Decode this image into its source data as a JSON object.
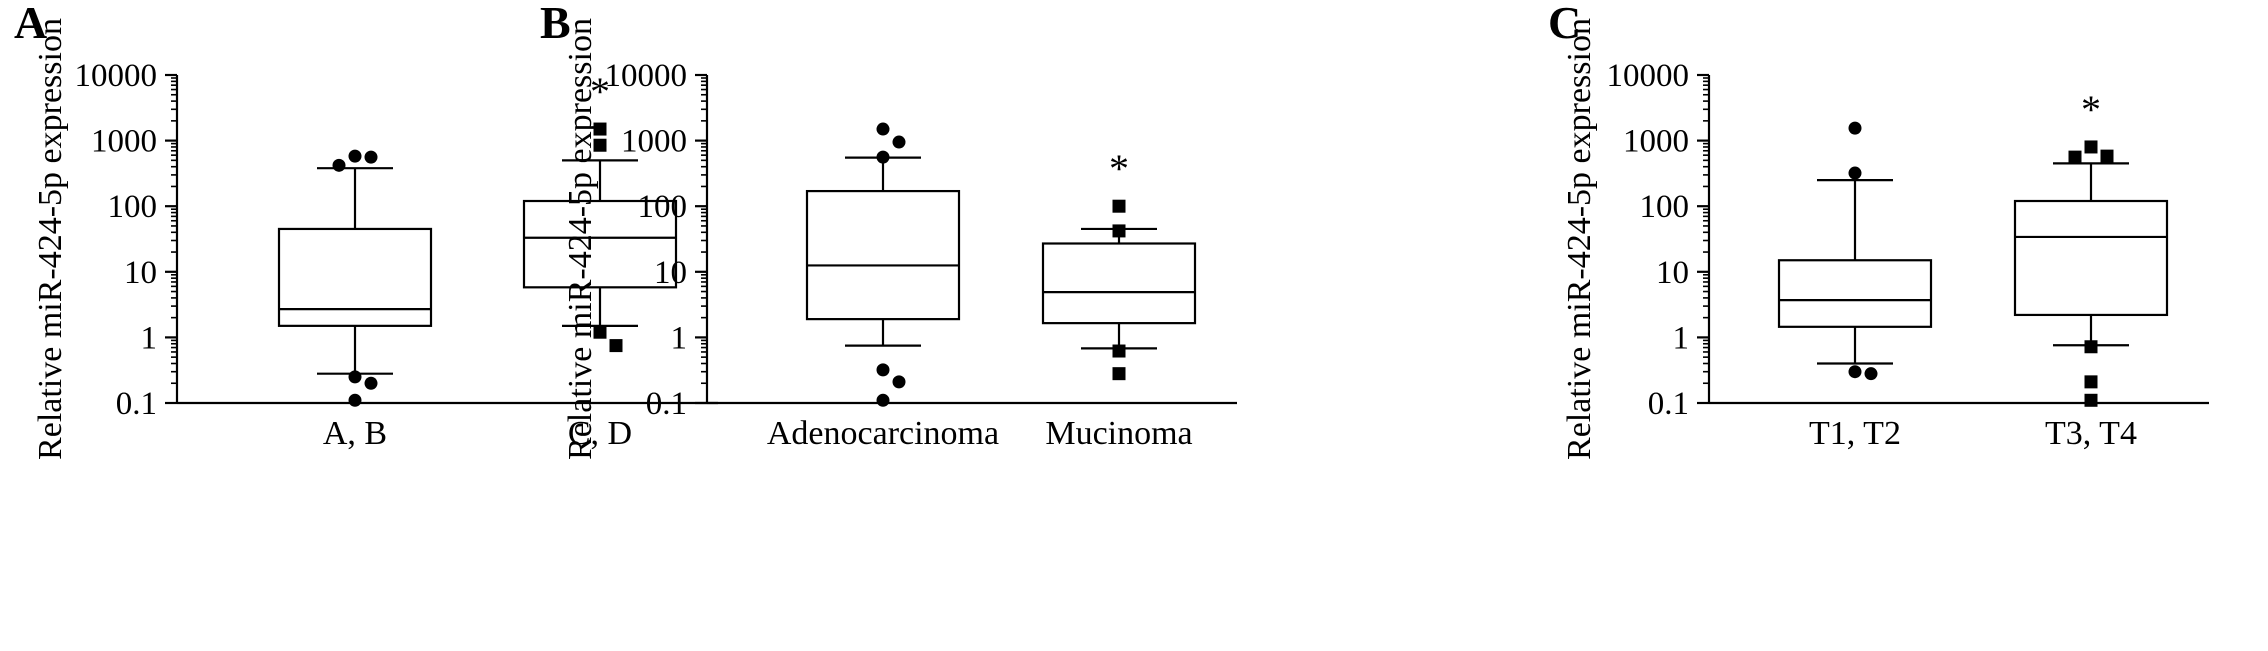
{
  "colors": {
    "ink": "#000000",
    "background": "#ffffff"
  },
  "chart_data": [
    {
      "panel": "A",
      "type": "box",
      "ylabel": "Relative miR-424-5p expression",
      "yscale": "log",
      "ylim": [
        0.1,
        10000
      ],
      "yticks": [
        "0.1",
        "1",
        "10",
        "100",
        "1000",
        "10000"
      ],
      "categories": [
        "A, B",
        "C, D"
      ],
      "groups": [
        {
          "label": "A, B",
          "marker": "circle",
          "whisker_low": 0.28,
          "q1": 1.5,
          "median": 2.7,
          "q3": 45,
          "whisker_high": 380,
          "outliers": [
            580,
            560,
            420,
            0.25,
            0.2,
            0.11
          ],
          "significance": ""
        },
        {
          "label": "C, D",
          "marker": "square",
          "whisker_low": 1.5,
          "q1": 5.8,
          "median": 33,
          "q3": 120,
          "whisker_high": 500,
          "outliers": [
            1500,
            850,
            1.2,
            0.75
          ],
          "significance": "*"
        }
      ]
    },
    {
      "panel": "B",
      "type": "box",
      "ylabel": "Relative miR-424-5p expression",
      "yscale": "log",
      "ylim": [
        0.1,
        10000
      ],
      "yticks": [
        "0.1",
        "1",
        "10",
        "100",
        "1000",
        "10000"
      ],
      "categories": [
        "Adenocarcinoma",
        "Mucinoma"
      ],
      "groups": [
        {
          "label": "Adenocarcinoma",
          "marker": "circle",
          "whisker_low": 0.75,
          "q1": 1.9,
          "median": 12.5,
          "q3": 170,
          "whisker_high": 550,
          "outliers": [
            1500,
            950,
            560,
            0.32,
            0.21,
            0.11
          ],
          "significance": ""
        },
        {
          "label": "Mucinoma",
          "marker": "square",
          "whisker_low": 0.68,
          "q1": 1.65,
          "median": 4.9,
          "q3": 27,
          "whisker_high": 45,
          "outliers": [
            100,
            42,
            0.62,
            0.28
          ],
          "significance": "*"
        }
      ]
    },
    {
      "panel": "C",
      "type": "box",
      "ylabel": "Relative miR-424-5p expression",
      "yscale": "log",
      "ylim": [
        0.1,
        10000
      ],
      "yticks": [
        "0.1",
        "1",
        "10",
        "100",
        "1000",
        "10000"
      ],
      "categories": [
        "T1, T2",
        "T3, T4"
      ],
      "groups": [
        {
          "label": "T1, T2",
          "marker": "circle",
          "whisker_low": 0.4,
          "q1": 1.45,
          "median": 3.7,
          "q3": 15,
          "whisker_high": 250,
          "outliers": [
            1550,
            320,
            0.3,
            0.28
          ],
          "significance": ""
        },
        {
          "label": "T3, T4",
          "marker": "square",
          "whisker_low": 0.76,
          "q1": 2.2,
          "median": 34,
          "q3": 120,
          "whisker_high": 450,
          "outliers": [
            800,
            580,
            560,
            0.72,
            0.21,
            0.11
          ],
          "significance": "*"
        }
      ]
    }
  ]
}
